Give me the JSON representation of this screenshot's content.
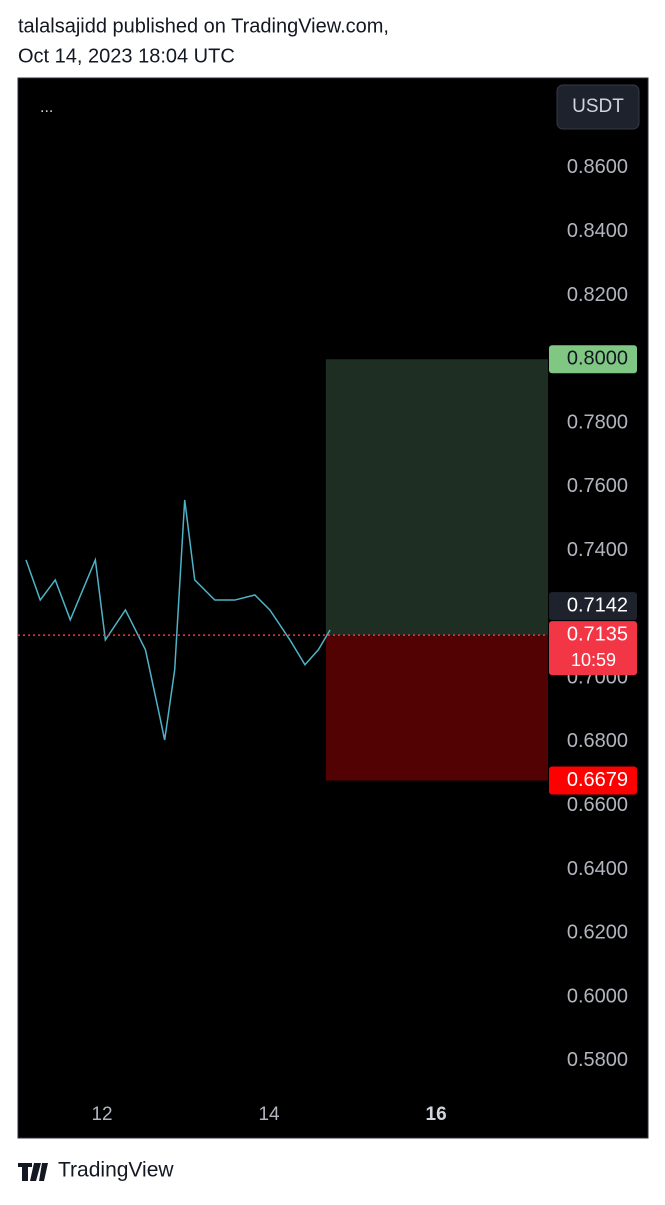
{
  "header": {
    "author_line": "talalsajidd published on TradingView.com,",
    "date_line": "Oct 14, 2023 18:04 UTC"
  },
  "toolbar": {
    "menu": "...",
    "currency": "USDT"
  },
  "chart_data": {
    "type": "line",
    "x": [
      11.09,
      11.26,
      11.44,
      11.62,
      11.92,
      12.04,
      12.28,
      12.52,
      12.7,
      12.75,
      12.87,
      12.99,
      13.11,
      13.35,
      13.59,
      13.83,
      14.01,
      14.25,
      14.43,
      14.59,
      14.73
    ],
    "series": [
      {
        "color": "#4fb3c8",
        "values": [
          0.7371,
          0.7245,
          0.7308,
          0.7183,
          0.7371,
          0.712,
          0.7214,
          0.7089,
          0.6869,
          0.6806,
          0.7026,
          0.7559,
          0.7308,
          0.7245,
          0.7245,
          0.7261,
          0.7214,
          0.712,
          0.7042,
          0.7089,
          0.7151
        ]
      }
    ],
    "xlim": [
      10.994,
      17.34
    ],
    "xticks": [
      12,
      14,
      16
    ],
    "ylim": [
      0.5693,
      0.8882
    ],
    "yticks": [
      {
        "value": 0.86,
        "label": "0.8600"
      },
      {
        "value": 0.84,
        "label": "0.8400"
      },
      {
        "value": 0.82,
        "label": "0.8200"
      },
      {
        "value": 0.8,
        "label": "0.8000"
      },
      {
        "value": 0.78,
        "label": "0.7800"
      },
      {
        "value": 0.76,
        "label": "0.7600"
      },
      {
        "value": 0.74,
        "label": "0.7400"
      },
      {
        "value": 0.72,
        "label": "0.7200"
      },
      {
        "value": 0.7,
        "label": "0.7000"
      },
      {
        "value": 0.68,
        "label": "0.6800"
      },
      {
        "value": 0.66,
        "label": "0.6600"
      },
      {
        "value": 0.64,
        "label": "0.6400"
      },
      {
        "value": 0.62,
        "label": "0.6200"
      },
      {
        "value": 0.6,
        "label": "0.6000"
      },
      {
        "value": 0.58,
        "label": "0.5800"
      }
    ],
    "markers": [
      {
        "value": 0.8,
        "label": "0.8000",
        "color": "#81c784"
      },
      {
        "value": 0.7142,
        "label": "0.7142",
        "color": "#1e222d"
      },
      {
        "value": 0.7135,
        "label": "0.7135",
        "countdown": "10:59",
        "color": "#f23645"
      },
      {
        "value": 0.6679,
        "label": "0.6679",
        "color": "#ff0000"
      }
    ],
    "position": {
      "x_start": 14.68,
      "profit_color": "#1f2e22",
      "loss_color": "#520202"
    }
  },
  "footer": {
    "brand": "TradingView"
  }
}
